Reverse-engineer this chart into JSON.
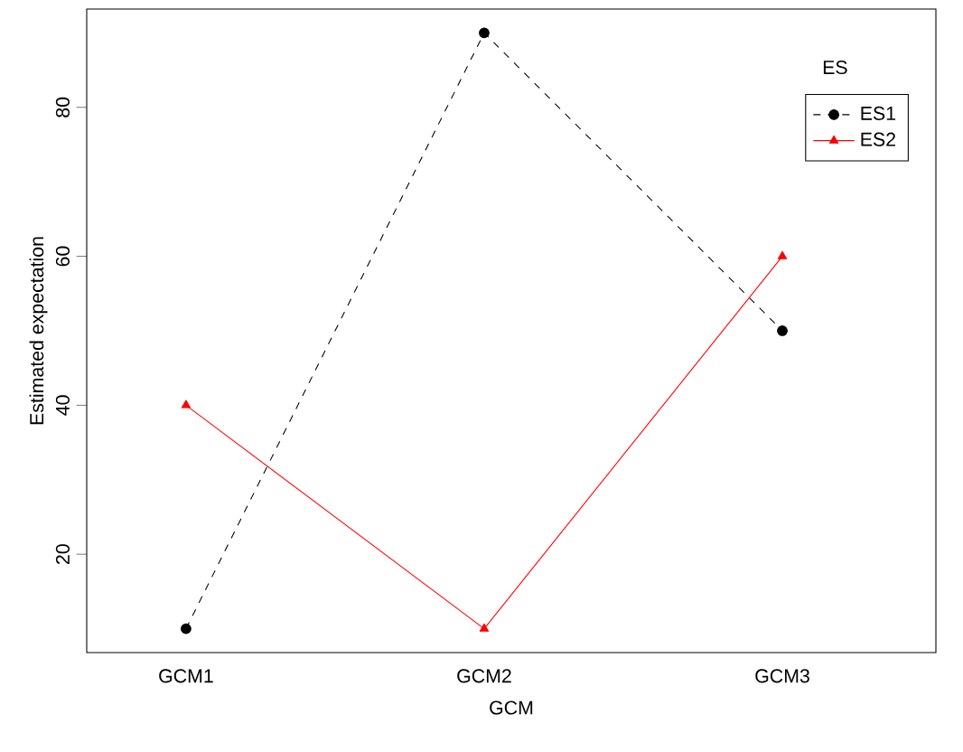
{
  "chart_data": {
    "type": "line",
    "xlabel": "GCM",
    "ylabel": "Estimated expectation",
    "legend_title": "ES",
    "categories": [
      "GCM1",
      "GCM2",
      "GCM3"
    ],
    "series": [
      {
        "name": "ES1",
        "color": "#000000",
        "values": [
          10,
          90,
          50
        ],
        "marker": "circle",
        "line_style": "dashed"
      },
      {
        "name": "ES2",
        "color": "#ff0000",
        "values": [
          40,
          10,
          60
        ],
        "marker": "triangle",
        "line_style": "solid"
      }
    ],
    "ylim": [
      6.8,
      93.2
    ],
    "yticks": [
      20,
      40,
      60,
      80
    ],
    "grid": false,
    "legend": "top right"
  }
}
